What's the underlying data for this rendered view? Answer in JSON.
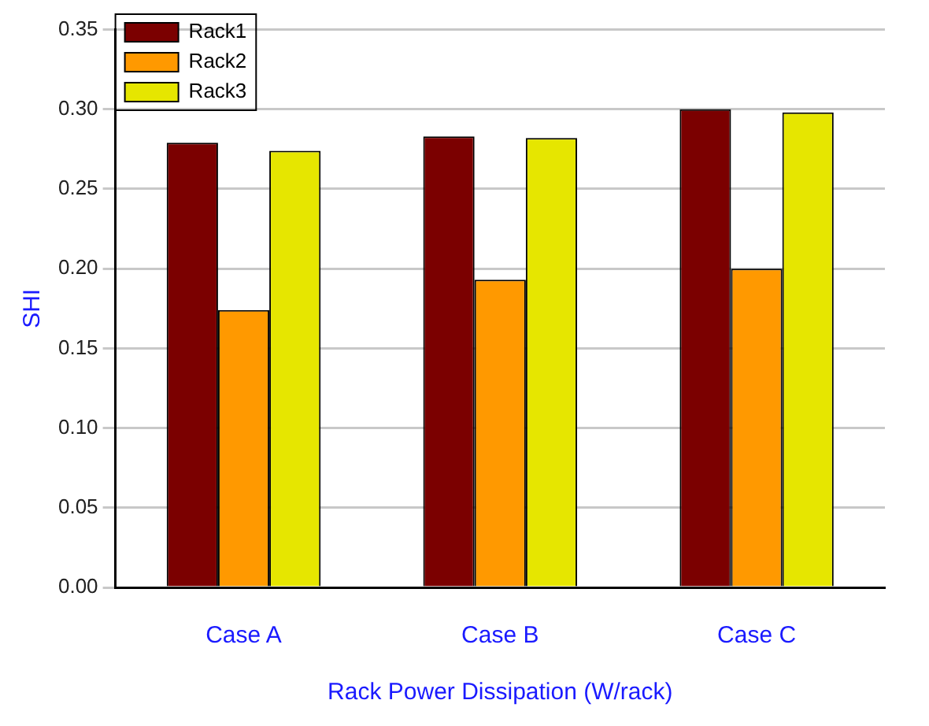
{
  "chart_data": {
    "type": "bar",
    "xlabel": "Rack Power Dissipation (W/rack)",
    "ylabel": "SHI",
    "categories": [
      "Case A",
      "Case B",
      "Case C"
    ],
    "series": [
      {
        "name": "Rack1",
        "color": "#7b0000",
        "values": [
          0.279,
          0.283,
          0.3
        ]
      },
      {
        "name": "Rack2",
        "color": "#ff9900",
        "values": [
          0.174,
          0.193,
          0.2
        ]
      },
      {
        "name": "Rack3",
        "color": "#e6e600",
        "values": [
          0.274,
          0.282,
          0.298
        ]
      }
    ],
    "ylim": [
      0,
      0.35
    ],
    "yticks": [
      {
        "value": 0,
        "label": "0.00"
      },
      {
        "value": 0.05,
        "label": "0.05"
      },
      {
        "value": 0.1,
        "label": "0.10"
      },
      {
        "value": 0.15,
        "label": "0.15"
      },
      {
        "value": 0.2,
        "label": "0.20"
      },
      {
        "value": 0.25,
        "label": "0.25"
      },
      {
        "value": 0.3,
        "label": "0.30"
      },
      {
        "value": 0.35,
        "label": "0.35"
      }
    ],
    "grid": "y",
    "legend": "top left"
  }
}
